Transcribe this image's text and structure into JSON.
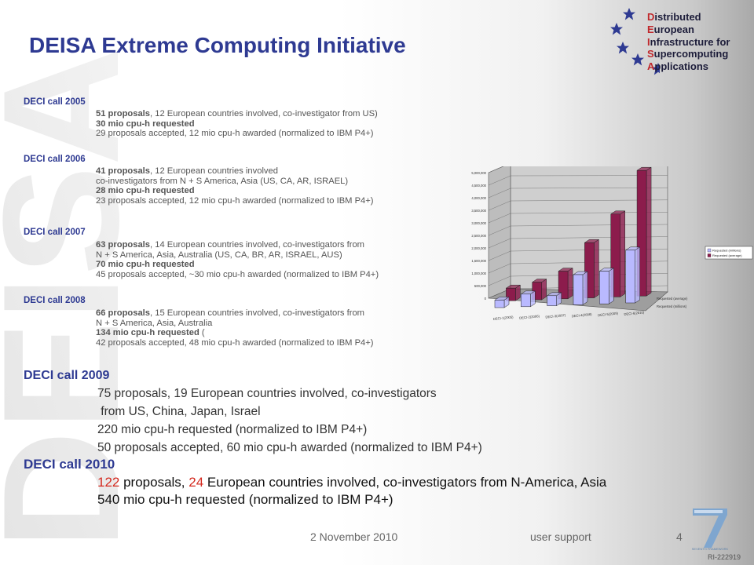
{
  "slide": {
    "title": "DEISA Extreme Computing Initiative",
    "watermark": "DEISA"
  },
  "logo": {
    "lines": [
      {
        "cap": "D",
        "rest": "istributed"
      },
      {
        "cap": "E",
        "rest": "uropean"
      },
      {
        "cap": "I",
        "rest": "nfrastructure for"
      },
      {
        "cap": "S",
        "rest": "upercomputing"
      },
      {
        "cap": "A",
        "rest": "pplications"
      }
    ],
    "star_color": "#2e3a92"
  },
  "calls_small": [
    {
      "heading": "DECI call 2005",
      "l1_bold": "51 proposals",
      "l1_rest": ", 12 European countries involved, co-investigator from US)",
      "l2_bold": "30 mio cpu-h requested",
      "l3": "29 proposals accepted, 12 mio cpu-h awarded (normalized to IBM P4+)"
    },
    {
      "heading": "DECI call 2006",
      "l1_bold": "41 proposals",
      "l1_rest": ", 12 European countries involved",
      "l1b": "co-investigators from N + S America, Asia  (US, CA, AR, ISRAEL)",
      "l2_bold": "28 mio cpu-h requested",
      "l3": "23 proposals accepted, 12 mio cpu-h awarded (normalized to IBM P4+)"
    },
    {
      "heading": "DECI call 2007",
      "l1_bold": "63 proposals",
      "l1_rest": ", 14 European countries involved, co-investigators from",
      "l1b": "N + S America, Asia, Australia  (US, CA, BR, AR, ISRAEL, AUS)",
      "l2_bold": "70 mio cpu-h requested",
      "l3": "45 proposals accepted, ~30 mio cpu-h awarded (normalized to IBM P4+)"
    },
    {
      "heading": "DECI call 2008",
      "l1_bold": "66 proposals",
      "l1_rest": ", 15 European countries involved, co-investigators from",
      "l1b": "N + S America, Asia, Australia",
      "l2_bold": "134 mio cpu-h requested",
      "l2_rest": "  (",
      "l3": "42 proposals accepted, 48 mio cpu-h awarded (normalized to IBM P4+)"
    }
  ],
  "call_2009": {
    "heading": "DECI call 2009",
    "lines": [
      "75 proposals, 19 European countries involved, co-investigators",
      " from US, China, Japan, Israel",
      "220 mio cpu-h requested (normalized to IBM P4+)",
      "50 proposals accepted, 60 mio cpu-h awarded (normalized to IBM P4+)"
    ]
  },
  "call_2010": {
    "heading": "DECI call 2010",
    "l1_num": "122",
    "l1_a": " proposals, ",
    "l1_num2": "24",
    "l1_b": " European countries involved, co-investigators from N-America, Asia",
    "l2": "540 mio cpu-h requested (normalized to IBM P4+)"
  },
  "footer": {
    "date": "2 November 2010",
    "center": "user support",
    "page": "4",
    "ref": "RI-222919"
  },
  "chart_data": {
    "type": "bar",
    "categories": [
      "DECI-1(2005)",
      "DECI-2(2006)",
      "DECI-3(2007)",
      "DECI-4(2008)",
      "DECI-5(2009)",
      "DECI-6(2010)"
    ],
    "series": [
      {
        "name": "Requested (millions)",
        "values": [
          300000,
          500000,
          400000,
          1200000,
          1300000,
          2100000
        ],
        "color": "#b9b9ff"
      },
      {
        "name": "Requested (average)",
        "values": [
          500000,
          700000,
          1100000,
          2200000,
          3300000,
          5000000
        ],
        "color": "#8c1c4c"
      }
    ],
    "y_ticks": [
      "0",
      "500,000",
      "1,000,000",
      "1,500,000",
      "2,000,000",
      "2,500,000",
      "3,000,000",
      "3,500,000",
      "4,000,000",
      "4,500,000",
      "5,000,000"
    ],
    "ylim": [
      0,
      5000000
    ],
    "legend_position": "right",
    "grid": true
  }
}
